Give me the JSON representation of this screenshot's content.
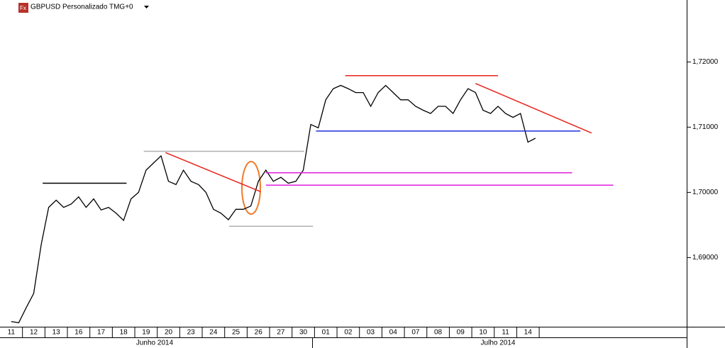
{
  "chart_data": {
    "type": "line",
    "title": "GBPUSD Personalizado TMG+0",
    "color": "#000000",
    "categories": [
      null,
      "11",
      null,
      null,
      "12",
      null,
      null,
      "13",
      null,
      null,
      "16",
      null,
      null,
      "17",
      null,
      null,
      "18",
      null,
      null,
      "19",
      null,
      null,
      "20",
      null,
      null,
      "23",
      null,
      null,
      "24",
      null,
      null,
      "25",
      null,
      null,
      "26",
      null,
      null,
      "27",
      null,
      null,
      "30",
      null,
      null,
      "01",
      null,
      null,
      "02",
      null,
      null,
      "03",
      null,
      null,
      "04",
      null,
      null,
      "07",
      null,
      null,
      "08",
      null,
      null,
      "09",
      null,
      null,
      "10",
      null,
      null,
      "11",
      null,
      null,
      "14",
      null
    ],
    "values": [
      null,
      1.6802,
      1.68,
      1.6823,
      1.6845,
      1.692,
      1.6977,
      1.6988,
      1.6977,
      1.6982,
      1.6993,
      1.6977,
      1.699,
      1.6973,
      1.6977,
      1.6968,
      1.6957,
      1.699,
      1.7,
      1.7034,
      1.7045,
      1.7056,
      1.7017,
      1.7012,
      1.7034,
      1.7017,
      1.7012,
      1.7,
      1.6974,
      1.6968,
      1.6958,
      1.6974,
      1.6974,
      1.6979,
      1.7017,
      1.7034,
      1.7017,
      1.7023,
      1.7014,
      1.7017,
      1.7034,
      1.7104,
      1.7099,
      1.7142,
      1.7159,
      1.7164,
      1.7159,
      1.7153,
      1.7153,
      1.7132,
      1.7153,
      1.7164,
      1.7153,
      1.7142,
      1.7142,
      1.7132,
      1.7126,
      1.7121,
      1.7132,
      1.7132,
      1.7121,
      1.7142,
      1.7159,
      1.7153,
      1.7126,
      1.7121,
      1.7132,
      1.7121,
      1.7115,
      1.7121,
      1.7077,
      1.7083
    ],
    "ylim": [
      1.6795,
      1.7295
    ],
    "yticks": [
      {
        "value": 1.69,
        "label": "1,69000"
      },
      {
        "value": 1.7,
        "label": "1,70000"
      },
      {
        "value": 1.71,
        "label": "1,71000"
      },
      {
        "value": 1.72,
        "label": "1,72000"
      }
    ],
    "x_groups": [
      "Junho 2014",
      "Julho 2014"
    ],
    "annotations": [
      {
        "color": "#000000",
        "x": [
          5.2,
          16.4
        ],
        "y": [
          1.7014,
          1.7014
        ]
      },
      {
        "color": "#b0b0b0",
        "x": [
          18.7,
          40.1
        ],
        "y": [
          1.7063,
          1.7063
        ]
      },
      {
        "color": "#b0b0b0",
        "x": [
          30.1,
          41.3
        ],
        "y": [
          1.6948,
          1.6948
        ]
      },
      {
        "color": "#e8231a",
        "x": [
          21.6,
          34.3
        ],
        "y": [
          1.7061,
          1.7001
        ]
      },
      {
        "color": "#e8231a",
        "x": [
          45.6,
          66.0
        ],
        "y": [
          1.7179,
          1.7179
        ]
      },
      {
        "color": "#1f2fd8",
        "x": [
          41.7,
          77.0
        ],
        "y": [
          1.7094,
          1.7094
        ]
      },
      {
        "color": "#e020e0",
        "x": [
          35.0,
          75.9
        ],
        "y": [
          1.703,
          1.703
        ]
      },
      {
        "color": "#e020e0",
        "x": [
          35.0,
          81.4
        ],
        "y": [
          1.7011,
          1.7011
        ]
      },
      {
        "color": "#e8231a",
        "x": [
          63.0,
          78.5
        ],
        "y": [
          1.7167,
          1.7091
        ]
      }
    ]
  }
}
